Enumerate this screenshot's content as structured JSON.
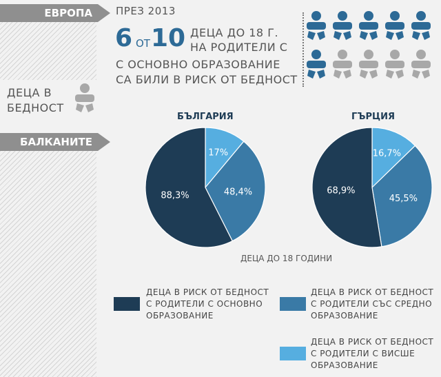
{
  "tags": {
    "europe": "ЕВРОПА",
    "balkans": "БАЛКАНИТЕ"
  },
  "headline": {
    "year_text": "ПРЕЗ 2013",
    "big_six": "6",
    "from_text": "ОТ",
    "big_ten": "10",
    "line1": "ДЕЦА ДО 18 Г.",
    "line2": "НА РОДИТЕЛИ С",
    "line3": "С ОСНОВНО ОБРАЗОВАНИЕ",
    "line4": "СА БИЛИ В РИСК ОТ БЕДНОСТ"
  },
  "side_label": {
    "line1": "ДЕЦА В",
    "line2": "БЕДНОСТ"
  },
  "icon_grid": {
    "total": 10,
    "highlighted": 6,
    "highlight_color": "#2d6a96",
    "base_color": "#a8a8a8"
  },
  "colors": {
    "dark": "#1e3c55",
    "medium": "#3a7aa6",
    "light": "#56aee0"
  },
  "chart_data": [
    {
      "type": "pie",
      "title": "БЪЛГАРИЯ",
      "labels": [
        "88,3%",
        "48,4%",
        "17%"
      ],
      "values": [
        88.3,
        48.4,
        17.0
      ],
      "series": [
        "ДЕЦА В РИСК ОТ БЕДНОСТ С РОДИТЕЛИ С ОСНОВНО ОБРАЗОВАНИЕ",
        "ДЕЦА В РИСК ОТ БЕДНОСТ С РОДИТЕЛИ СЪС СРЕДНО ОБРАЗОВАНИЕ",
        "ДЕЦА В РИСК ОТ БЕДНОСТ С РОДИТЕЛИ С ВИСШЕ ОБРАЗОВАНИЕ"
      ]
    },
    {
      "type": "pie",
      "title": "ГЪРЦИЯ",
      "labels": [
        "68,9%",
        "45,5%",
        "16,7%"
      ],
      "values": [
        68.9,
        45.5,
        16.7
      ],
      "series": [
        "ДЕЦА В РИСК ОТ БЕДНОСТ С РОДИТЕЛИ С ОСНОВНО ОБРАЗОВАНИЕ",
        "ДЕЦА В РИСК ОТ БЕДНОСТ С РОДИТЕЛИ СЪС СРЕДНО ОБРАЗОВАНИЕ",
        "ДЕЦА В РИСК ОТ БЕДНОСТ С РОДИТЕЛИ С ВИСШЕ ОБРАЗОВАНИЕ"
      ]
    }
  ],
  "charts_caption": "ДЕЦА ДО 18 ГОДИНИ",
  "legend": [
    {
      "line1": "ДЕЦА В РИСК ОТ БЕДНОСТ",
      "line2": "С РОДИТЕЛИ С ОСНОВНО",
      "line3": "ОБРАЗОВАНИЕ"
    },
    {
      "line1": "ДЕЦА В РИСК ОТ БЕДНОСТ",
      "line2": "С РОДИТЕЛИ СЪС СРЕДНО",
      "line3": "ОБРАЗОВАНИЕ"
    },
    {
      "line1": "ДЕЦА В РИСК ОТ БЕДНОСТ",
      "line2": "С РОДИТЕЛИ С ВИСШЕ",
      "line3": "ОБРАЗОВАНИЕ"
    }
  ]
}
